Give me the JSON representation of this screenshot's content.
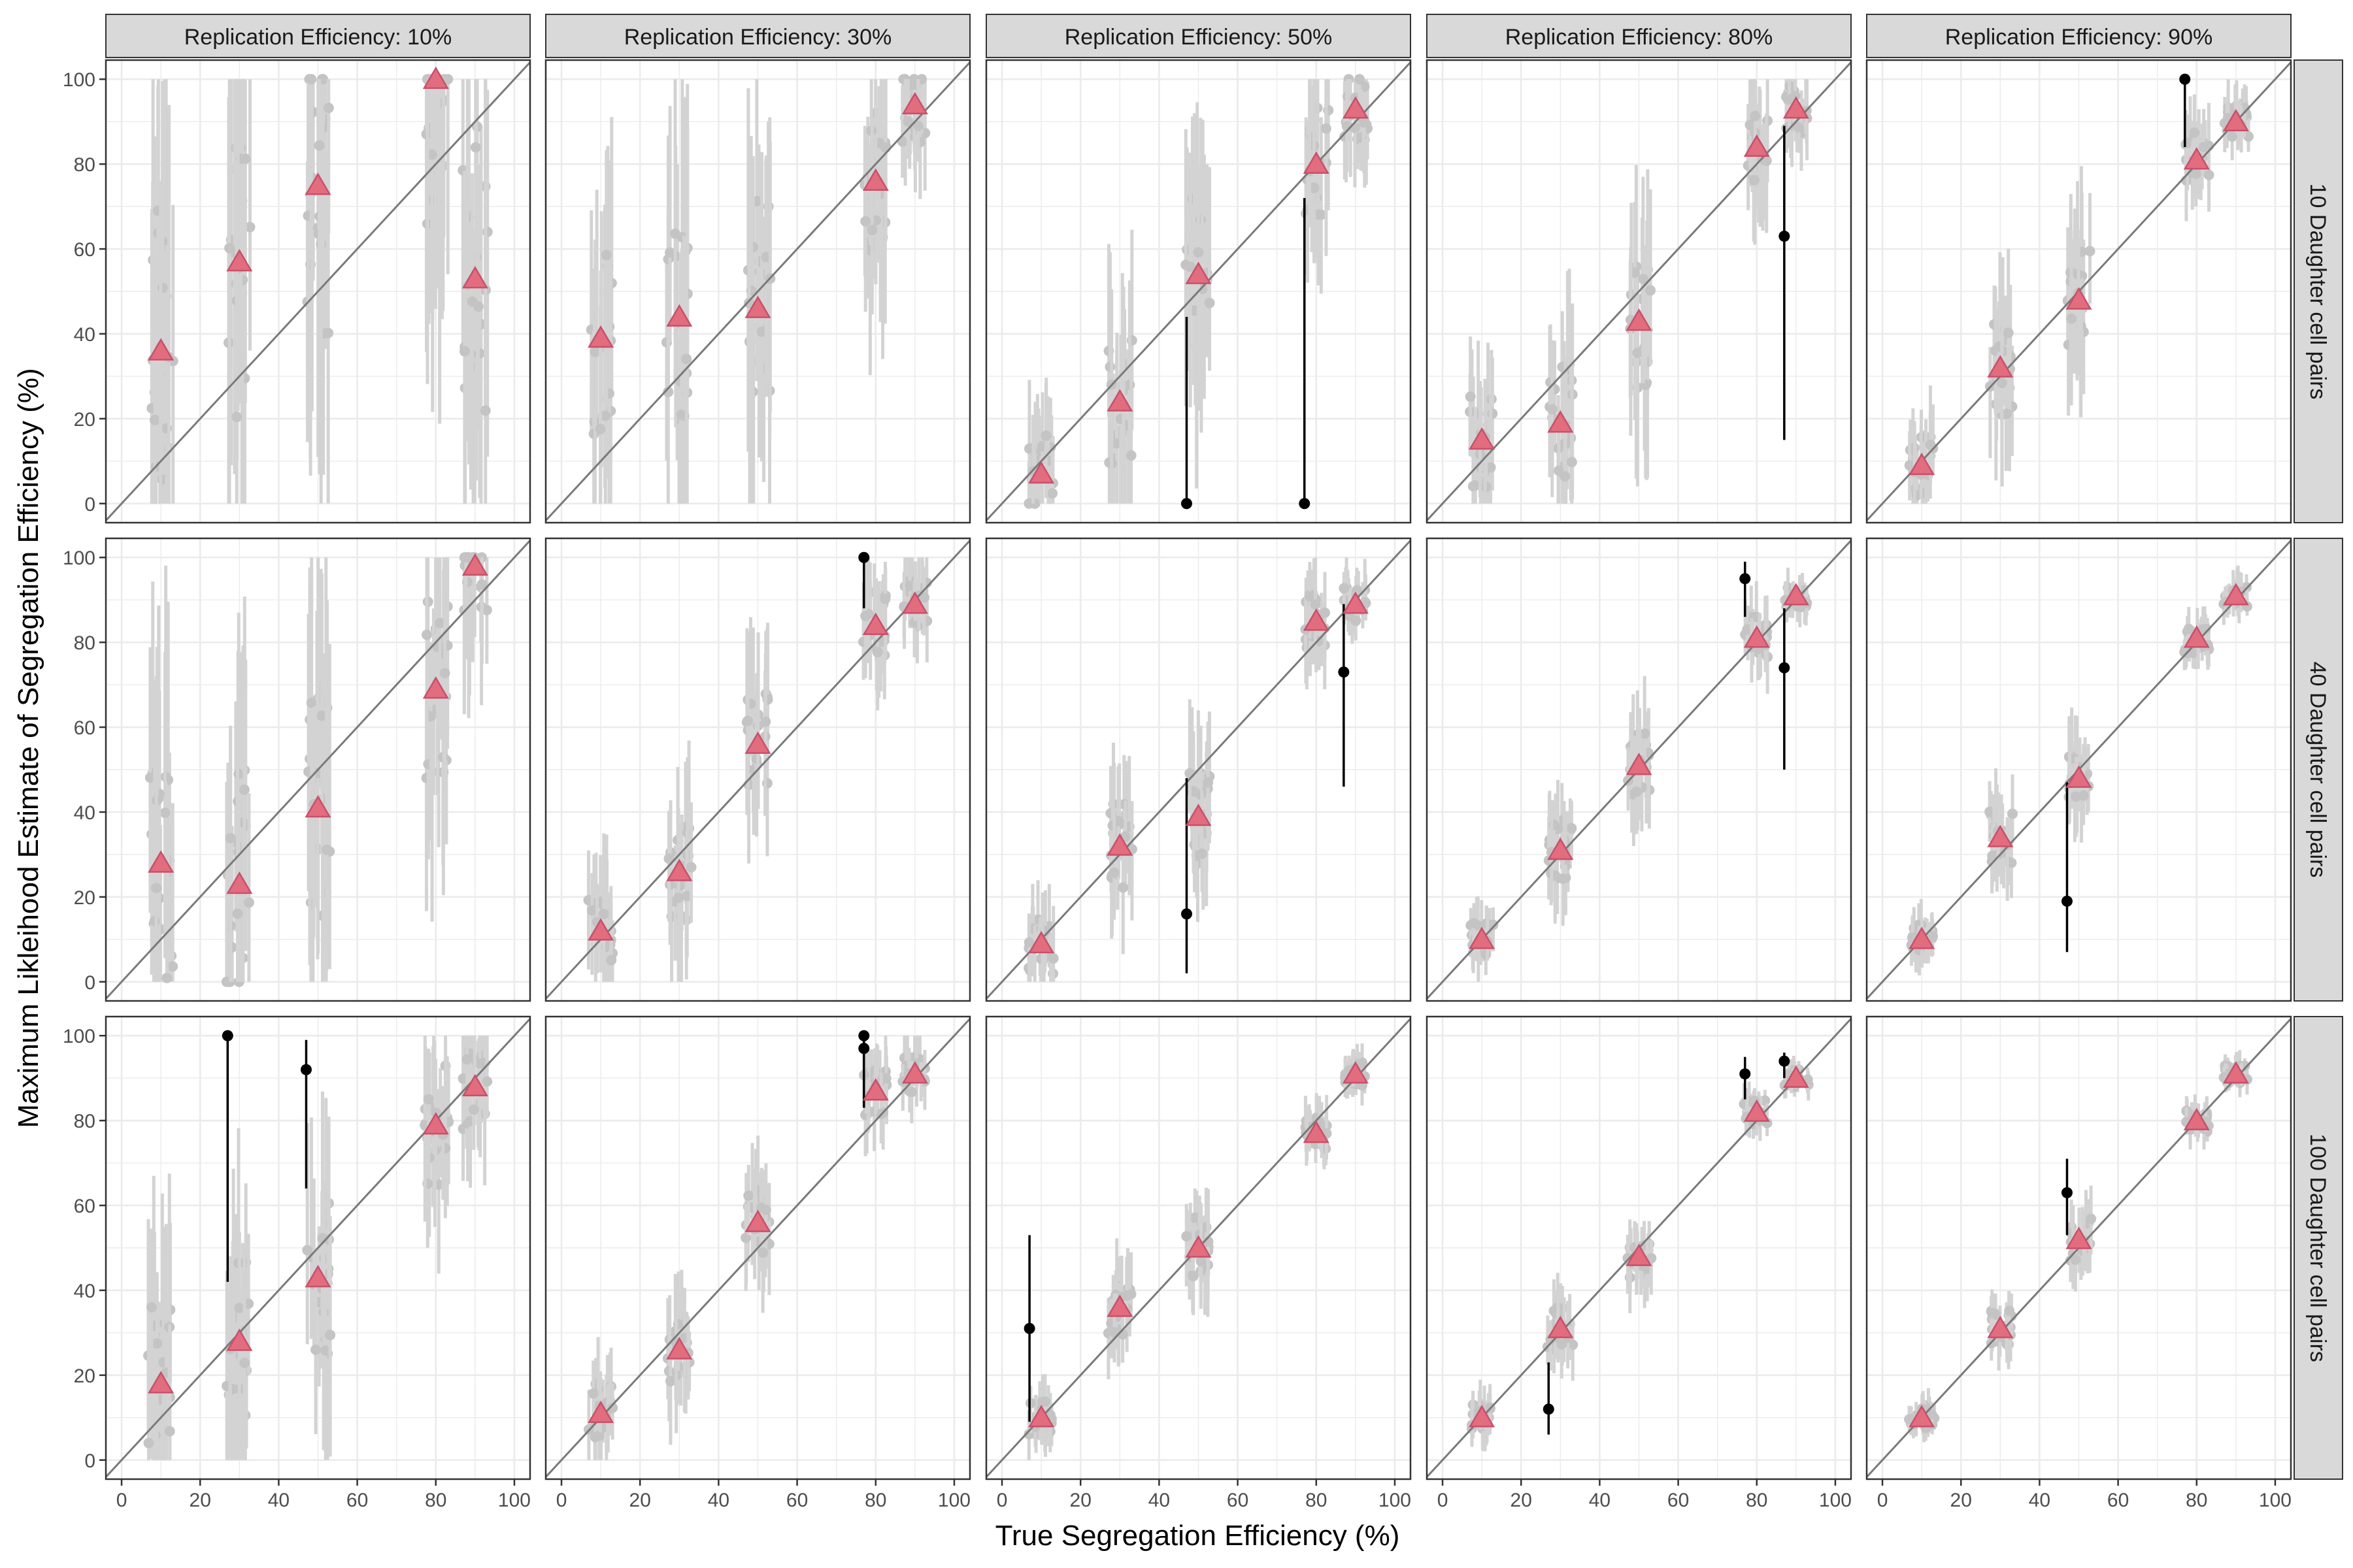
{
  "chart_data": {
    "type": "scatter",
    "title": "",
    "xlabel": "True Segregation Efficiency (%)",
    "ylabel": "Maximum Likleihood Estimate of Segregation Efficiency (%)",
    "xlim": [
      -4,
      104
    ],
    "ylim": [
      -4.5,
      104.5
    ],
    "x_ticks": [
      "0",
      "20",
      "40",
      "60",
      "80",
      "100"
    ],
    "y_ticks": [
      "0",
      "20",
      "40",
      "60",
      "80",
      "100"
    ],
    "col_strips": [
      "Replication Efficiency: 10%",
      "Replication Efficiency: 30%",
      "Replication Efficiency: 50%",
      "Replication Efficiency: 80%",
      "Replication Efficiency: 90%"
    ],
    "row_strips": [
      "10 Daughter cell pairs",
      "40 Daughter cell pairs",
      "100 Daughter cell pairs"
    ],
    "identity_line": true,
    "grid": true,
    "colors": {
      "point": "#c4c4c4",
      "interval": "#d3d3d3",
      "outlier": "#000000",
      "mean_marker": "#e26d7f",
      "mean_marker_edge": "#c9506a",
      "identity_line": "#7a7a7a",
      "strip_bg": "#d9d9d9"
    },
    "true_values": [
      10,
      30,
      50,
      80,
      90
    ],
    "mean_estimates": [
      [
        [
          36,
          57,
          75,
          100,
          53
        ],
        [
          39,
          44,
          46,
          76,
          94
        ],
        [
          7,
          24,
          54,
          80,
          93
        ],
        [
          15,
          19,
          43,
          84,
          93
        ],
        [
          9,
          32,
          48,
          81,
          90
        ]
      ],
      [
        [
          28,
          23,
          41,
          69,
          98
        ],
        [
          12,
          26,
          56,
          84,
          89
        ],
        [
          9,
          32,
          39,
          85,
          89
        ],
        [
          10,
          31,
          51,
          81,
          91
        ],
        [
          10,
          34,
          48,
          81,
          91
        ]
      ],
      [
        [
          18,
          28,
          43,
          79,
          88
        ],
        [
          11,
          26,
          56,
          87,
          91
        ],
        [
          10,
          36,
          50,
          77,
          91
        ],
        [
          10,
          31,
          48,
          82,
          90
        ],
        [
          10,
          31,
          52,
          80,
          91
        ]
      ]
    ],
    "interval_half_width": [
      [
        [
          52,
          52,
          52,
          52,
          52
        ],
        [
          32,
          34,
          36,
          24,
          14
        ],
        [
          15,
          22,
          28,
          20,
          12
        ],
        [
          16,
          20,
          22,
          14,
          8
        ],
        [
          10,
          16,
          18,
          9,
          6
        ]
      ],
      [
        [
          40,
          38,
          40,
          30,
          20
        ],
        [
          14,
          18,
          18,
          12,
          8
        ],
        [
          10,
          14,
          16,
          9,
          6
        ],
        [
          6,
          10,
          11,
          7,
          4
        ],
        [
          5,
          9,
          10,
          5,
          4
        ]
      ],
      [
        [
          30,
          26,
          28,
          20,
          14
        ],
        [
          10,
          12,
          12,
          8,
          6
        ],
        [
          6,
          9,
          10,
          6,
          4
        ],
        [
          5,
          7,
          7,
          4,
          3
        ],
        [
          4,
          6,
          7,
          4,
          3
        ]
      ]
    ],
    "outliers": [
      [
        [],
        [],
        [
          [
            47,
            0,
            0,
            44
          ],
          [
            77,
            0,
            0,
            72
          ]
        ],
        [
          [
            87,
            63,
            15,
            89
          ]
        ],
        [
          [
            77,
            100,
            84,
            100
          ]
        ]
      ],
      [
        [],
        [
          [
            77,
            100,
            88,
            100
          ]
        ],
        [
          [
            47,
            16,
            2,
            48
          ],
          [
            87,
            73,
            46,
            89
          ]
        ],
        [
          [
            77,
            95,
            86,
            99
          ],
          [
            87,
            74,
            50,
            88
          ]
        ],
        [
          [
            47,
            19,
            7,
            47
          ]
        ]
      ],
      [
        [
          [
            27,
            100,
            42,
            100
          ],
          [
            47,
            92,
            64,
            99
          ]
        ],
        [
          [
            77,
            100,
            84,
            100
          ],
          [
            77,
            97,
            83,
            100
          ]
        ],
        [
          [
            7,
            31,
            9,
            53
          ]
        ],
        [
          [
            77,
            91,
            85,
            95
          ],
          [
            87,
            94,
            90,
            96
          ],
          [
            27,
            12,
            6,
            23
          ]
        ],
        [
          [
            47,
            63,
            53,
            71
          ]
        ]
      ]
    ]
  }
}
